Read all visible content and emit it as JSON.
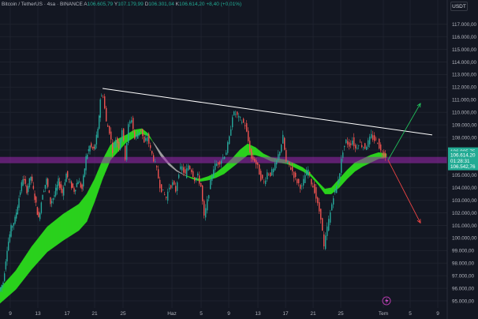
{
  "header": {
    "symbol": "Bitcoin / TetherUS · 4sa · BINANCE",
    "open_label": "A",
    "open": "106.605,79",
    "high_label": "Y",
    "high": "107.179,99",
    "low_label": "D",
    "low": "106.301,04",
    "close_label": "K",
    "close": "106.614,20",
    "change": "+8,40 (+0,01%)"
  },
  "currency_button": "USDT",
  "chart_data": {
    "type": "candlestick",
    "y_ticks": [
      "95.000,00",
      "96.000,00",
      "97.000,00",
      "98.000,00",
      "99.000,00",
      "100.000,00",
      "101.000,00",
      "102.000,00",
      "103.000,00",
      "104.000,00",
      "105.000,00",
      "106.000,00",
      "107.000,00",
      "108.000,00",
      "109.000,00",
      "110.000,00",
      "111.000,00",
      "112.000,00",
      "113.000,00",
      "114.000,00",
      "115.000,00",
      "116.000,00",
      "117.000,00"
    ],
    "y_tick_values": [
      95000,
      96000,
      97000,
      98000,
      99000,
      100000,
      101000,
      102000,
      103000,
      104000,
      105000,
      106000,
      107000,
      108000,
      109000,
      110000,
      111000,
      112000,
      113000,
      114000,
      115000,
      116000,
      117000
    ],
    "ylim": [
      94600,
      118000
    ],
    "x_ticks": [
      "9",
      "13",
      "17",
      "21",
      "25",
      "Haz",
      "5",
      "9",
      "13",
      "17",
      "21",
      "25",
      "Tem",
      "5",
      "9"
    ],
    "price_tags": [
      {
        "label": "106.905,75",
        "value": 106905,
        "color": "#22ab94"
      },
      {
        "label": "106.614,20",
        "value": 106614,
        "color": "#22ab94"
      },
      {
        "label": "01:28:31",
        "value": 106150,
        "color": "#22ab94"
      },
      {
        "label": "106.542,76",
        "value": 105690,
        "color": "#22ab94"
      }
    ],
    "price_path": [
      [
        0,
        95800
      ],
      [
        5,
        96500
      ],
      [
        10,
        99200
      ],
      [
        15,
        100800
      ],
      [
        20,
        101500
      ],
      [
        25,
        103200
      ],
      [
        30,
        104800
      ],
      [
        35,
        103800
      ],
      [
        40,
        104900
      ],
      [
        45,
        103200
      ],
      [
        50,
        101500
      ],
      [
        55,
        103600
      ],
      [
        60,
        104600
      ],
      [
        65,
        102800
      ],
      [
        70,
        103400
      ],
      [
        75,
        104500
      ],
      [
        80,
        103600
      ],
      [
        85,
        105100
      ],
      [
        90,
        104300
      ],
      [
        95,
        103800
      ],
      [
        100,
        104600
      ],
      [
        105,
        103900
      ],
      [
        110,
        106400
      ],
      [
        115,
        107300
      ],
      [
        120,
        107000
      ],
      [
        125,
        108500
      ],
      [
        128,
        111100
      ],
      [
        132,
        111400
      ],
      [
        136,
        109200
      ],
      [
        140,
        108500
      ],
      [
        144,
        107000
      ],
      [
        148,
        107900
      ],
      [
        152,
        107300
      ],
      [
        156,
        108700
      ],
      [
        160,
        106400
      ],
      [
        164,
        108900
      ],
      [
        168,
        109500
      ],
      [
        172,
        107900
      ],
      [
        176,
        108300
      ],
      [
        180,
        108700
      ],
      [
        184,
        107500
      ],
      [
        188,
        108100
      ],
      [
        192,
        107000
      ],
      [
        196,
        106300
      ],
      [
        200,
        105400
      ],
      [
        204,
        104200
      ],
      [
        208,
        103600
      ],
      [
        212,
        103200
      ],
      [
        216,
        104100
      ],
      [
        220,
        104300
      ],
      [
        224,
        103800
      ],
      [
        228,
        105300
      ],
      [
        232,
        105600
      ],
      [
        236,
        105000
      ],
      [
        240,
        105800
      ],
      [
        244,
        105400
      ],
      [
        248,
        104700
      ],
      [
        252,
        104900
      ],
      [
        256,
        104100
      ],
      [
        260,
        101600
      ],
      [
        264,
        102900
      ],
      [
        268,
        104400
      ],
      [
        272,
        105600
      ],
      [
        276,
        105900
      ],
      [
        280,
        106100
      ],
      [
        284,
        106400
      ],
      [
        288,
        106900
      ],
      [
        292,
        107900
      ],
      [
        296,
        109800
      ],
      [
        300,
        109900
      ],
      [
        304,
        109500
      ],
      [
        308,
        109300
      ],
      [
        312,
        109000
      ],
      [
        316,
        107700
      ],
      [
        320,
        106300
      ],
      [
        324,
        106200
      ],
      [
        328,
        105600
      ],
      [
        332,
        104800
      ],
      [
        336,
        104400
      ],
      [
        340,
        105200
      ],
      [
        344,
        105100
      ],
      [
        348,
        105400
      ],
      [
        352,
        106100
      ],
      [
        356,
        107000
      ],
      [
        360,
        108000
      ],
      [
        364,
        106000
      ],
      [
        368,
        105800
      ],
      [
        372,
        105300
      ],
      [
        376,
        104700
      ],
      [
        380,
        104300
      ],
      [
        384,
        104000
      ],
      [
        388,
        105000
      ],
      [
        392,
        105400
      ],
      [
        396,
        104400
      ],
      [
        400,
        103800
      ],
      [
        404,
        102600
      ],
      [
        408,
        101700
      ],
      [
        412,
        99200
      ],
      [
        416,
        100800
      ],
      [
        420,
        102000
      ],
      [
        424,
        103400
      ],
      [
        428,
        104100
      ],
      [
        432,
        105300
      ],
      [
        436,
        107000
      ],
      [
        440,
        107700
      ],
      [
        444,
        107400
      ],
      [
        448,
        107800
      ],
      [
        452,
        107100
      ],
      [
        456,
        107600
      ],
      [
        460,
        107400
      ],
      [
        464,
        107200
      ],
      [
        468,
        107600
      ],
      [
        472,
        108100
      ],
      [
        476,
        107800
      ],
      [
        480,
        107700
      ],
      [
        484,
        106900
      ],
      [
        488,
        106700
      ],
      [
        490,
        106614
      ]
    ],
    "ma_fast": [
      [
        0,
        96000
      ],
      [
        20,
        97400
      ],
      [
        40,
        99300
      ],
      [
        60,
        100900
      ],
      [
        80,
        101900
      ],
      [
        100,
        102700
      ],
      [
        110,
        103500
      ],
      [
        120,
        104700
      ],
      [
        130,
        106200
      ],
      [
        140,
        107400
      ],
      [
        150,
        107900
      ],
      [
        160,
        108200
      ],
      [
        170,
        108600
      ],
      [
        180,
        108700
      ],
      [
        188,
        108300
      ],
      [
        196,
        107400
      ],
      [
        204,
        106500
      ],
      [
        214,
        105800
      ],
      [
        224,
        105300
      ],
      [
        234,
        105000
      ],
      [
        244,
        104800
      ],
      [
        254,
        104700
      ],
      [
        264,
        104900
      ],
      [
        274,
        105200
      ],
      [
        284,
        105700
      ],
      [
        294,
        106300
      ],
      [
        304,
        107000
      ],
      [
        314,
        107500
      ],
      [
        324,
        107200
      ],
      [
        334,
        106700
      ],
      [
        344,
        106400
      ],
      [
        354,
        106300
      ],
      [
        364,
        106200
      ],
      [
        374,
        105900
      ],
      [
        384,
        105600
      ],
      [
        394,
        105100
      ],
      [
        404,
        104400
      ],
      [
        412,
        103900
      ],
      [
        420,
        104000
      ],
      [
        430,
        104700
      ],
      [
        440,
        105400
      ],
      [
        450,
        106000
      ],
      [
        460,
        106300
      ],
      [
        470,
        106600
      ],
      [
        480,
        106800
      ],
      [
        490,
        106700
      ]
    ],
    "ma_slow": [
      [
        0,
        94800
      ],
      [
        20,
        95900
      ],
      [
        40,
        97500
      ],
      [
        60,
        98900
      ],
      [
        80,
        99800
      ],
      [
        100,
        100600
      ],
      [
        110,
        101300
      ],
      [
        120,
        102900
      ],
      [
        130,
        104700
      ],
      [
        140,
        106200
      ],
      [
        150,
        106900
      ],
      [
        160,
        107600
      ],
      [
        170,
        108000
      ],
      [
        180,
        108300
      ],
      [
        188,
        108100
      ],
      [
        196,
        107500
      ],
      [
        204,
        106800
      ],
      [
        214,
        106000
      ],
      [
        224,
        105400
      ],
      [
        234,
        105000
      ],
      [
        244,
        104700
      ],
      [
        254,
        104500
      ],
      [
        264,
        104600
      ],
      [
        274,
        104800
      ],
      [
        284,
        105100
      ],
      [
        294,
        105600
      ],
      [
        304,
        106100
      ],
      [
        314,
        106600
      ],
      [
        324,
        106600
      ],
      [
        334,
        106400
      ],
      [
        344,
        106100
      ],
      [
        354,
        106000
      ],
      [
        364,
        105900
      ],
      [
        374,
        105600
      ],
      [
        384,
        105300
      ],
      [
        394,
        104900
      ],
      [
        404,
        104200
      ],
      [
        412,
        103500
      ],
      [
        420,
        103500
      ],
      [
        430,
        104000
      ],
      [
        440,
        104700
      ],
      [
        450,
        105300
      ],
      [
        460,
        105700
      ],
      [
        470,
        106000
      ],
      [
        480,
        106300
      ],
      [
        490,
        106400
      ]
    ],
    "trendline": [
      [
        130,
        111900
      ],
      [
        548,
        108200
      ]
    ],
    "zone": [
      105950,
      106450
    ],
    "projection_up": [
      [
        492,
        106200
      ],
      [
        533,
        110700
      ]
    ],
    "projection_down": [
      [
        492,
        106200
      ],
      [
        533,
        101200
      ]
    ]
  }
}
